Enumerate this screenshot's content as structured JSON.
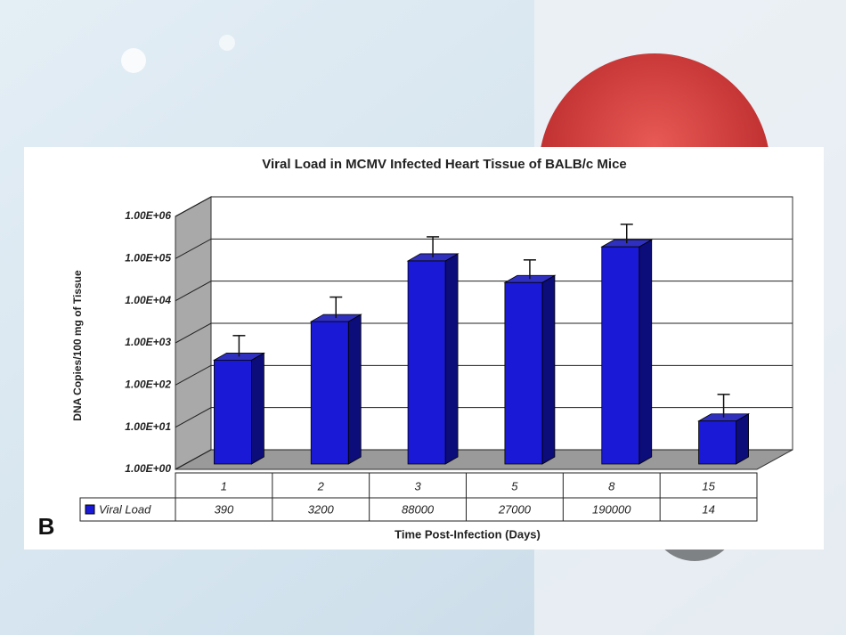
{
  "chart_data": {
    "type": "bar3d",
    "panel_label": "B",
    "title": "Viral Load in MCMV Infected Heart Tissue of BALB/c Mice",
    "y_label": "DNA Copies/100 mg of Tissue",
    "x_label": "Time Post-Infection (Days)",
    "categories": [
      "1",
      "2",
      "3",
      "5",
      "8",
      "15"
    ],
    "series": [
      {
        "name": "Viral Load",
        "color": "#1a1ad6",
        "values": [
          390,
          3200,
          88000,
          27000,
          190000,
          14
        ],
        "errors": [
          1100,
          9000,
          240000,
          66000,
          460000,
          46
        ]
      }
    ],
    "log_scale": true,
    "ylim": [
      1,
      1000000
    ],
    "yticks": [
      {
        "value": 1,
        "label": "1.00E+00"
      },
      {
        "value": 10,
        "label": "1.00E+01"
      },
      {
        "value": 100,
        "label": "1.00E+02"
      },
      {
        "value": 1000,
        "label": "1.00E+03"
      },
      {
        "value": 10000,
        "label": "1.00E+04"
      },
      {
        "value": 100000,
        "label": "1.00E+05"
      },
      {
        "value": 1000000,
        "label": "1.00E+06"
      }
    ],
    "grid": true,
    "data_table": true
  }
}
